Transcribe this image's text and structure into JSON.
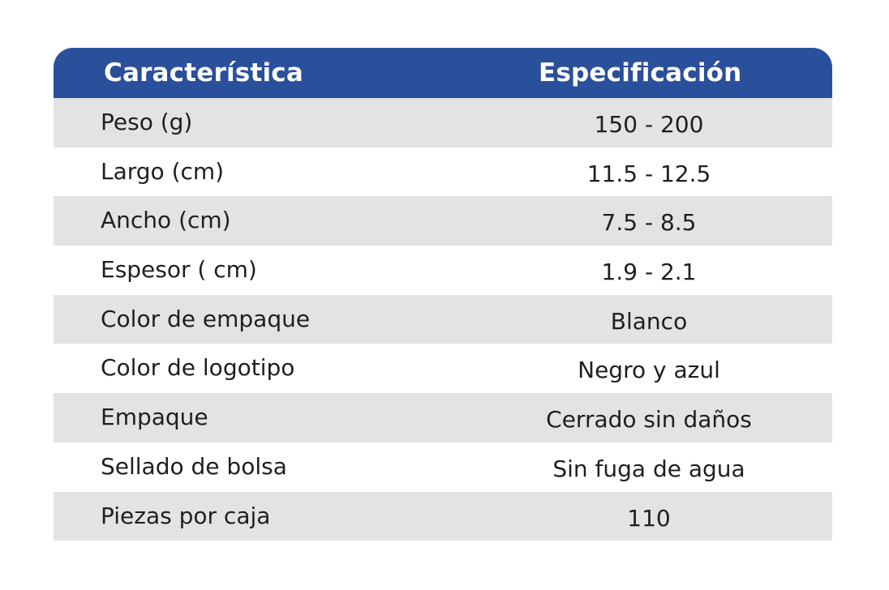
{
  "table": {
    "headers": {
      "feature": "Característica",
      "spec": "Especificación"
    },
    "rows": [
      {
        "feature": "Peso (g)",
        "spec": "150 - 200"
      },
      {
        "feature": "Largo (cm)",
        "spec": "11.5 - 12.5"
      },
      {
        "feature": "Ancho (cm)",
        "spec": "7.5 - 8.5"
      },
      {
        "feature": "Espesor ( cm)",
        "spec": "1.9 - 2.1"
      },
      {
        "feature": "Color de empaque",
        "spec": "Blanco"
      },
      {
        "feature": "Color de logotipo",
        "spec": "Negro y azul"
      },
      {
        "feature": "Empaque",
        "spec": "Cerrado sin daños"
      },
      {
        "feature": "Sellado de bolsa",
        "spec": "Sin fuga de agua"
      },
      {
        "feature": "Piezas por caja",
        "spec": "110"
      }
    ]
  },
  "colors": {
    "header_bg": "#2a4f9b",
    "shaded_row": "#e3e3e4",
    "plain_row": "#ffffff",
    "text": "#1f1f1f"
  }
}
